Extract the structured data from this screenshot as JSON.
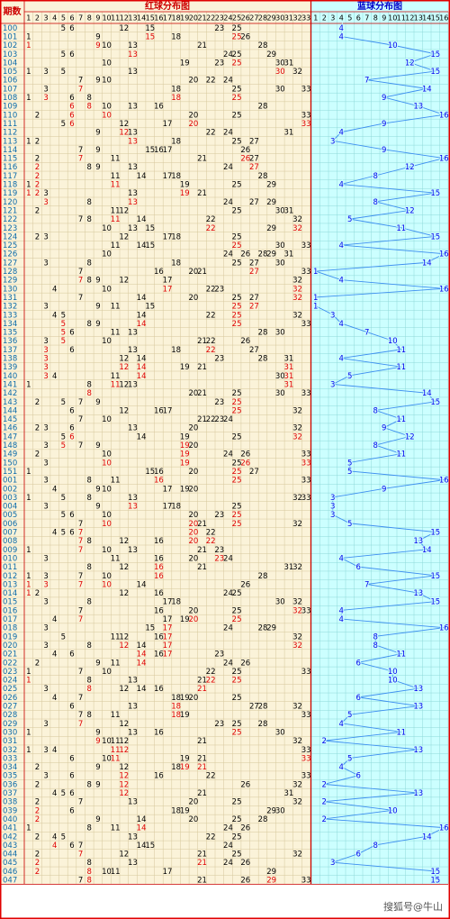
{
  "period_title": "期数",
  "red_title": "红球分布图",
  "blue_title": "蓝球分布图",
  "red_columns": [
    1,
    2,
    3,
    4,
    5,
    6,
    7,
    8,
    9,
    10,
    11,
    12,
    13,
    14,
    15,
    16,
    17,
    18,
    19,
    20,
    21,
    22,
    23,
    24,
    25,
    26,
    27,
    28,
    29,
    30,
    31,
    32,
    33
  ],
  "blue_columns": [
    1,
    2,
    3,
    4,
    5,
    6,
    7,
    8,
    9,
    10,
    11,
    12,
    13,
    14,
    15,
    16
  ],
  "rows": [
    {
      "period": "100",
      "red": [
        5,
        6,
        12,
        15,
        23,
        25
      ],
      "blue": 4
    },
    {
      "period": "101",
      "red": [
        1,
        9,
        15,
        18,
        25,
        26
      ],
      "blue": 4
    },
    {
      "period": "102",
      "red": [
        1,
        9,
        10,
        13,
        21,
        28
      ],
      "blue": 10
    },
    {
      "period": "103",
      "red": [
        5,
        6,
        13,
        24,
        25,
        29
      ],
      "blue": 15
    },
    {
      "period": "104",
      "red": [
        10,
        19,
        23,
        25,
        30,
        31
      ],
      "blue": 12
    },
    {
      "period": "105",
      "red": [
        1,
        3,
        5,
        13,
        30,
        32
      ],
      "blue": 15
    },
    {
      "period": "106",
      "red": [
        7,
        9,
        10,
        20,
        22,
        24
      ],
      "blue": 7
    },
    {
      "period": "107",
      "red": [
        3,
        7,
        18,
        25,
        30,
        33
      ],
      "blue": 14
    },
    {
      "period": "108",
      "red": [
        1,
        3,
        6,
        8,
        18,
        25
      ],
      "blue": 9
    },
    {
      "period": "109",
      "red": [
        6,
        8,
        10,
        13,
        16,
        28
      ],
      "blue": 13
    },
    {
      "period": "110",
      "red": [
        2,
        6,
        10,
        20,
        25,
        33
      ],
      "blue": 16
    },
    {
      "period": "111",
      "red": [
        5,
        6,
        12,
        17,
        20,
        33
      ],
      "blue": 9
    },
    {
      "period": "112",
      "red": [
        9,
        12,
        13,
        22,
        24,
        31
      ],
      "blue": 4
    },
    {
      "period": "113",
      "red": [
        1,
        2,
        13,
        18,
        25,
        27
      ],
      "blue": 3
    },
    {
      "period": "114",
      "red": [
        7,
        9,
        15,
        16,
        17,
        26
      ],
      "blue": 9
    },
    {
      "period": "115",
      "red": [
        2,
        7,
        11,
        21,
        26,
        27
      ],
      "blue": 16
    },
    {
      "period": "116",
      "red": [
        2,
        8,
        9,
        13,
        24,
        27
      ],
      "blue": 12
    },
    {
      "period": "117",
      "red": [
        2,
        11,
        14,
        17,
        18,
        28
      ],
      "blue": 8
    },
    {
      "period": "118",
      "red": [
        1,
        2,
        11,
        19,
        25,
        29
      ],
      "blue": 4
    },
    {
      "period": "119",
      "red": [
        1,
        2,
        3,
        13,
        19,
        21
      ],
      "blue": 15
    },
    {
      "period": "120",
      "red": [
        3,
        8,
        13,
        24,
        27,
        29
      ],
      "blue": 8
    },
    {
      "period": "121",
      "red": [
        2,
        11,
        12,
        25,
        30,
        31
      ],
      "blue": 12
    },
    {
      "period": "122",
      "red": [
        7,
        8,
        11,
        14,
        22,
        32
      ],
      "blue": 5
    },
    {
      "period": "123",
      "red": [
        10,
        13,
        15,
        22,
        29,
        32
      ],
      "blue": 11
    },
    {
      "period": "124",
      "red": [
        2,
        3,
        12,
        17,
        18,
        25
      ],
      "blue": 15
    },
    {
      "period": "125",
      "red": [
        11,
        14,
        15,
        25,
        30,
        33
      ],
      "blue": 4
    },
    {
      "period": "126",
      "red": [
        10,
        24,
        26,
        28,
        29,
        31
      ],
      "blue": 16
    },
    {
      "period": "127",
      "red": [
        3,
        8,
        18,
        25,
        27,
        30
      ],
      "blue": 14
    },
    {
      "period": "128",
      "red": [
        7,
        16,
        20,
        21,
        27,
        33
      ],
      "blue": 1
    },
    {
      "period": "129",
      "red": [
        7,
        8,
        9,
        12,
        17,
        32
      ],
      "blue": 4
    },
    {
      "period": "130",
      "red": [
        4,
        10,
        17,
        22,
        23,
        32
      ],
      "blue": 16
    },
    {
      "period": "131",
      "red": [
        7,
        14,
        20,
        25,
        27,
        32
      ],
      "blue": 1
    },
    {
      "period": "132",
      "red": [
        3,
        9,
        11,
        15,
        25,
        27
      ],
      "blue": 1
    },
    {
      "period": "133",
      "red": [
        4,
        5,
        14,
        22,
        25,
        32
      ],
      "blue": 3
    },
    {
      "period": "134",
      "red": [
        5,
        8,
        9,
        14,
        25,
        33
      ],
      "blue": 4
    },
    {
      "period": "135",
      "red": [
        5,
        6,
        11,
        13,
        28,
        30
      ],
      "blue": 7
    },
    {
      "period": "136",
      "red": [
        3,
        5,
        10,
        21,
        22,
        26
      ],
      "blue": 10
    },
    {
      "period": "137",
      "red": [
        3,
        6,
        13,
        18,
        22,
        27
      ],
      "blue": 11
    },
    {
      "period": "138",
      "red": [
        3,
        12,
        14,
        23,
        28,
        31
      ],
      "blue": 4
    },
    {
      "period": "139",
      "red": [
        3,
        12,
        14,
        19,
        21,
        31
      ],
      "blue": 11
    },
    {
      "period": "140",
      "red": [
        3,
        4,
        11,
        14,
        30,
        31
      ],
      "blue": 5
    },
    {
      "period": "141",
      "red": [
        1,
        8,
        11,
        12,
        13,
        31
      ],
      "blue": 3
    },
    {
      "period": "142",
      "red": [
        8,
        20,
        21,
        25,
        30,
        33
      ],
      "blue": 14
    },
    {
      "period": "143",
      "red": [
        2,
        5,
        7,
        9,
        23,
        25
      ],
      "blue": 15
    },
    {
      "period": "144",
      "red": [
        6,
        12,
        16,
        17,
        25,
        32
      ],
      "blue": 8
    },
    {
      "period": "145",
      "red": [
        7,
        10,
        21,
        22,
        23,
        24
      ],
      "blue": 11
    },
    {
      "period": "146",
      "red": [
        2,
        3,
        6,
        13,
        20,
        32
      ],
      "blue": 9
    },
    {
      "period": "147",
      "red": [
        5,
        6,
        14,
        19,
        25,
        32
      ],
      "blue": 12
    },
    {
      "period": "148",
      "red": [
        3,
        5,
        7,
        9,
        19,
        20
      ],
      "blue": 8
    },
    {
      "period": "149",
      "red": [
        2,
        10,
        19,
        24,
        26,
        33
      ],
      "blue": 11
    },
    {
      "period": "150",
      "red": [
        3,
        10,
        19,
        25,
        26,
        33
      ],
      "blue": 5
    },
    {
      "period": "151",
      "red": [
        1,
        15,
        16,
        20,
        25,
        27
      ],
      "blue": 5
    },
    {
      "period": "001",
      "red": [
        3,
        8,
        11,
        16,
        25,
        33
      ],
      "blue": 16
    },
    {
      "period": "002",
      "red": [
        4,
        9,
        10,
        17,
        19,
        20
      ],
      "blue": 9
    },
    {
      "period": "003",
      "red": [
        1,
        5,
        8,
        13,
        32,
        33
      ],
      "blue": 3
    },
    {
      "period": "004",
      "red": [
        3,
        9,
        13,
        17,
        18,
        25
      ],
      "blue": 3
    },
    {
      "period": "005",
      "red": [
        5,
        6,
        10,
        20,
        23,
        25
      ],
      "blue": 3
    },
    {
      "period": "006",
      "red": [
        7,
        10,
        20,
        21,
        25,
        32
      ],
      "blue": 5
    },
    {
      "period": "007",
      "red": [
        4,
        5,
        6,
        7,
        20,
        22
      ],
      "blue": 15
    },
    {
      "period": "008",
      "red": [
        7,
        8,
        12,
        16,
        20,
        22
      ],
      "blue": 13
    },
    {
      "period": "009",
      "red": [
        1,
        7,
        10,
        13,
        21,
        23
      ],
      "blue": 14
    },
    {
      "period": "010",
      "red": [
        3,
        11,
        16,
        20,
        23,
        24
      ],
      "blue": 4
    },
    {
      "period": "011",
      "red": [
        8,
        12,
        16,
        21,
        31,
        32
      ],
      "blue": 6
    },
    {
      "period": "012",
      "red": [
        1,
        3,
        7,
        10,
        16,
        28
      ],
      "blue": 15
    },
    {
      "period": "013",
      "red": [
        1,
        3,
        7,
        10,
        14,
        26
      ],
      "blue": 7
    },
    {
      "period": "014",
      "red": [
        1,
        2,
        12,
        16,
        24,
        25
      ],
      "blue": 13
    },
    {
      "period": "015",
      "red": [
        3,
        8,
        17,
        18,
        30,
        32
      ],
      "blue": 15
    },
    {
      "period": "016",
      "red": [
        7,
        16,
        20,
        25,
        32,
        33
      ],
      "blue": 4
    },
    {
      "period": "017",
      "red": [
        4,
        7,
        17,
        19,
        20,
        25
      ],
      "blue": 4
    },
    {
      "period": "018",
      "red": [
        3,
        15,
        17,
        24,
        28,
        29
      ],
      "blue": 16
    },
    {
      "period": "019",
      "red": [
        5,
        11,
        12,
        16,
        17,
        32
      ],
      "blue": 8
    },
    {
      "period": "020",
      "red": [
        3,
        8,
        12,
        14,
        17,
        32
      ],
      "blue": 8
    },
    {
      "period": "021",
      "red": [
        4,
        6,
        14,
        16,
        17,
        23
      ],
      "blue": 11
    },
    {
      "period": "022",
      "red": [
        2,
        9,
        11,
        14,
        24,
        26
      ],
      "blue": 6
    },
    {
      "period": "023",
      "red": [
        1,
        7,
        10,
        22,
        25,
        33
      ],
      "blue": 10
    },
    {
      "period": "024",
      "red": [
        1,
        8,
        13,
        21,
        22,
        25
      ],
      "blue": 10
    },
    {
      "period": "025",
      "red": [
        3,
        8,
        12,
        14,
        16,
        21
      ],
      "blue": 13
    },
    {
      "period": "026",
      "red": [
        4,
        7,
        18,
        19,
        20,
        25
      ],
      "blue": 6
    },
    {
      "period": "027",
      "red": [
        6,
        13,
        18,
        27,
        28,
        32
      ],
      "blue": 13
    },
    {
      "period": "028",
      "red": [
        7,
        8,
        11,
        18,
        19,
        33
      ],
      "blue": 5
    },
    {
      "period": "029",
      "red": [
        3,
        7,
        12,
        23,
        25,
        28
      ],
      "blue": 4
    },
    {
      "period": "030",
      "red": [
        1,
        9,
        13,
        16,
        25,
        30
      ],
      "blue": 11
    },
    {
      "period": "031",
      "red": [
        9,
        10,
        11,
        12,
        21,
        32
      ],
      "blue": 2
    },
    {
      "period": "032",
      "red": [
        1,
        3,
        4,
        11,
        12,
        33
      ],
      "blue": 13
    },
    {
      "period": "033",
      "red": [
        6,
        10,
        11,
        19,
        21,
        33
      ],
      "blue": 5
    },
    {
      "period": "034",
      "red": [
        2,
        9,
        12,
        18,
        19,
        21
      ],
      "blue": 4
    },
    {
      "period": "035",
      "red": [
        3,
        6,
        12,
        16,
        22,
        33
      ],
      "blue": 6
    },
    {
      "period": "036",
      "red": [
        2,
        8,
        9,
        12,
        26,
        32
      ],
      "blue": 2
    },
    {
      "period": "037",
      "red": [
        4,
        5,
        6,
        12,
        21,
        31
      ],
      "blue": 13
    },
    {
      "period": "038",
      "red": [
        2,
        7,
        13,
        20,
        25,
        32
      ],
      "blue": 2
    },
    {
      "period": "039",
      "red": [
        2,
        6,
        18,
        19,
        29,
        30
      ],
      "blue": 10
    },
    {
      "period": "040",
      "red": [
        2,
        9,
        14,
        20,
        25,
        28
      ],
      "blue": 2
    },
    {
      "period": "041",
      "red": [
        1,
        8,
        11,
        14,
        24,
        26
      ],
      "blue": 16
    },
    {
      "period": "042",
      "red": [
        2,
        4,
        5,
        13,
        22,
        25
      ],
      "blue": 14
    },
    {
      "period": "043",
      "red": [
        4,
        6,
        7,
        14,
        15,
        24
      ],
      "blue": 8
    },
    {
      "period": "044",
      "red": [
        2,
        7,
        12,
        21,
        25,
        32
      ],
      "blue": 6
    },
    {
      "period": "045",
      "red": [
        2,
        8,
        13,
        21,
        24,
        26
      ],
      "blue": 3
    },
    {
      "period": "046",
      "red": [
        2,
        8,
        10,
        11,
        17,
        29
      ],
      "blue": 15
    },
    {
      "period": "047",
      "red": [
        7,
        8,
        21,
        26,
        29,
        33
      ],
      "blue": 15
    }
  ],
  "watermark": "搜狐号@牛山"
}
